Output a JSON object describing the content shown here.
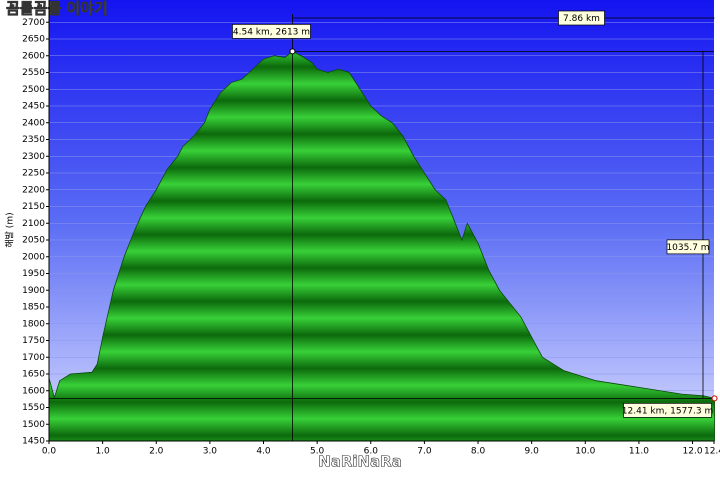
{
  "chart_data": {
    "type": "area",
    "title": "꼼틀꼼틀 이야기",
    "watermark": "NaRiNaRa",
    "ylabel": "해발 (m)",
    "series": [
      {
        "name": "elevation",
        "color": "#22b022",
        "x": [
          0,
          0.1,
          0.2,
          0.4,
          0.8,
          0.9,
          1.0,
          1.2,
          1.4,
          1.6,
          1.8,
          2.0,
          2.2,
          2.4,
          2.5,
          2.7,
          2.9,
          3.0,
          3.2,
          3.4,
          3.6,
          3.8,
          4.0,
          4.2,
          4.4,
          4.54,
          4.7,
          4.9,
          5.0,
          5.2,
          5.4,
          5.6,
          5.8,
          6.0,
          6.2,
          6.4,
          6.6,
          6.8,
          7.0,
          7.2,
          7.4,
          7.5,
          7.7,
          7.8,
          8.0,
          8.2,
          8.4,
          8.6,
          8.8,
          9.0,
          9.2,
          9.4,
          9.6,
          9.8,
          10.0,
          10.2,
          10.6,
          11.0,
          11.4,
          11.8,
          12.2,
          12.41
        ],
        "values": [
          1638,
          1580,
          1630,
          1650,
          1655,
          1680,
          1760,
          1900,
          2000,
          2080,
          2150,
          2200,
          2260,
          2300,
          2330,
          2360,
          2400,
          2440,
          2490,
          2520,
          2530,
          2560,
          2590,
          2600,
          2595,
          2613,
          2600,
          2580,
          2560,
          2550,
          2560,
          2550,
          2500,
          2450,
          2420,
          2400,
          2360,
          2300,
          2250,
          2200,
          2170,
          2130,
          2050,
          2100,
          2040,
          1960,
          1900,
          1860,
          1820,
          1760,
          1700,
          1680,
          1660,
          1650,
          1640,
          1630,
          1620,
          1610,
          1600,
          1590,
          1585,
          1577.3
        ]
      }
    ],
    "annotations": {
      "peak": "4.54 km, 2613 m",
      "end": "12.41 km, 1577.3 m",
      "distance": "7.86 km",
      "climb": "1035.7 m"
    },
    "xlim": [
      0,
      12.4
    ],
    "xticks": [
      {
        "value": 0,
        "label": "0.0"
      },
      {
        "value": 1,
        "label": "1.0"
      },
      {
        "value": 2,
        "label": "2.0"
      },
      {
        "value": 3,
        "label": "3.0"
      },
      {
        "value": 4,
        "label": "4.0"
      },
      {
        "value": 5,
        "label": "5.0"
      },
      {
        "value": 6,
        "label": "6.0"
      },
      {
        "value": 7,
        "label": "7.0"
      },
      {
        "value": 8,
        "label": "8.0"
      },
      {
        "value": 9,
        "label": "9.0"
      },
      {
        "value": 10,
        "label": "10.0"
      },
      {
        "value": 11,
        "label": "11.0"
      },
      {
        "value": 12,
        "label": "12.0"
      },
      12.4
    ],
    "ylim": [
      1450,
      2700
    ],
    "yticks": [
      1450,
      1500,
      1550,
      1600,
      1650,
      1700,
      1750,
      1800,
      1850,
      1900,
      1950,
      2000,
      2050,
      2100,
      2150,
      2200,
      2250,
      2300,
      2350,
      2400,
      2450,
      2500,
      2550,
      2600,
      2650,
      2700
    ],
    "grid": true
  }
}
